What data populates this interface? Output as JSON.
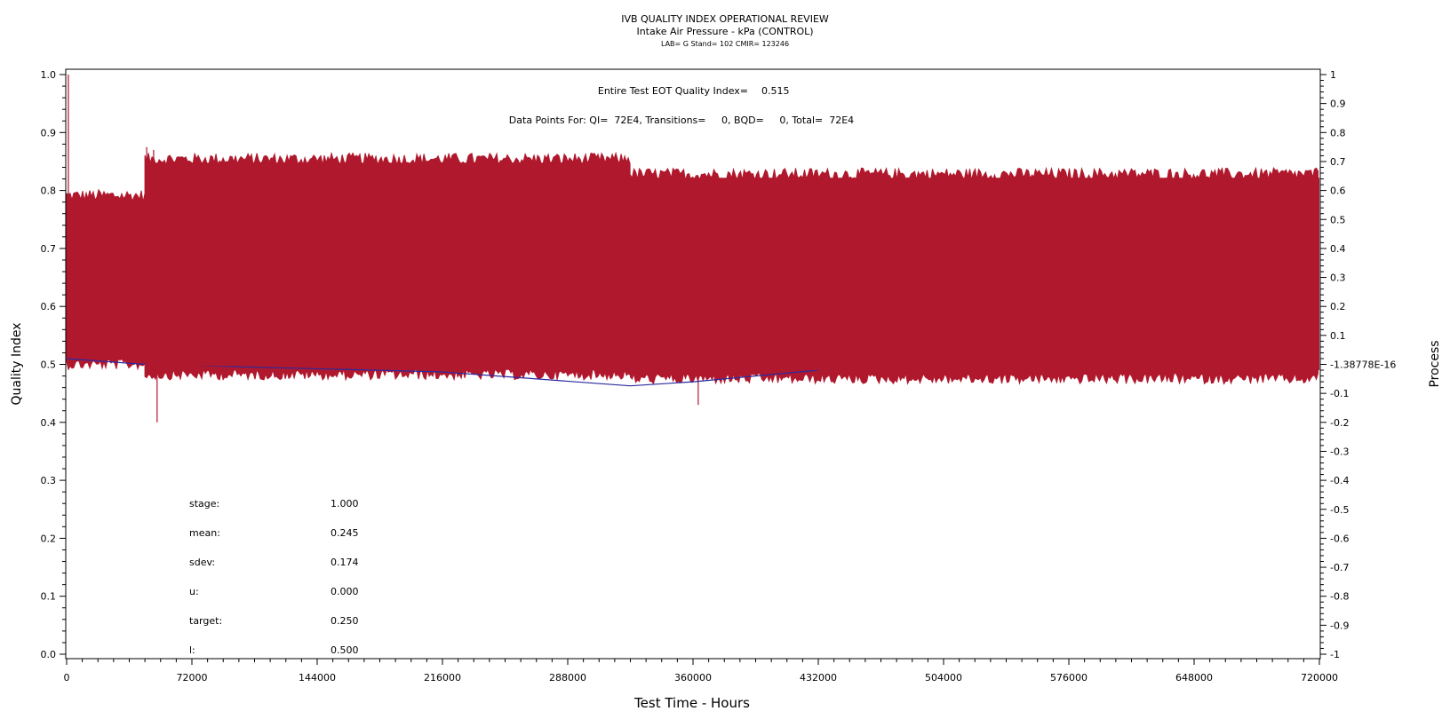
{
  "chart_data": {
    "type": "line",
    "title": "IVB QUALITY INDEX OPERATIONAL REVIEW",
    "subtitle": "Intake Air Pressure - kPa (CONTROL)",
    "subtitle2": "LAB= G Stand= 102 CMIR= 123246",
    "xlabel": "Test Time - Hours",
    "ylabel": "Quality Index",
    "y2label": "Process",
    "xlim": [
      0,
      720000
    ],
    "ylim": [
      0,
      1
    ],
    "y2lim": [
      -1,
      1
    ],
    "x_ticks": [
      "0",
      "72000",
      "144000",
      "216000",
      "288000",
      "360000",
      "432000",
      "504000",
      "576000",
      "648000",
      "720000"
    ],
    "y_ticks": [
      "0.0",
      "0.1",
      "0.2",
      "0.3",
      "0.4",
      "0.5",
      "0.6",
      "0.7",
      "0.8",
      "0.9",
      "1.0"
    ],
    "y2_ticks": [
      "-1",
      "-0.9",
      "-0.8",
      "-0.7",
      "-0.6",
      "-0.5",
      "-0.4",
      "-0.3",
      "-0.2",
      "-0.1",
      "-1.38778E-16",
      "0.1",
      "0.2",
      "0.3",
      "0.4",
      "0.5",
      "0.6",
      "0.7",
      "0.8",
      "0.9",
      "1"
    ],
    "annotations": {
      "eot_label": "Entire Test EOT Quality Index=",
      "eot_value": "0.515",
      "data_points": "Data Points For: QI=  72E4, Transitions=     0, BQD=     0, Total=  72E4"
    },
    "stats": [
      {
        "label": "stage:",
        "value": "1.000"
      },
      {
        "label": "mean:",
        "value": "0.245"
      },
      {
        "label": "sdev:",
        "value": "0.174"
      },
      {
        "label": "u:",
        "value": "0.000"
      },
      {
        "label": "target:",
        "value": "0.250"
      },
      {
        "label": "l:",
        "value": "0.500"
      }
    ],
    "series": [
      {
        "color": "#b0182d",
        "band_segments": [
          {
            "x0": 0,
            "x1": 45000,
            "low": 0.505,
            "high": 0.785
          },
          {
            "x0": 45000,
            "x1": 324000,
            "low": 0.487,
            "high": 0.848
          },
          {
            "x0": 324000,
            "x1": 720000,
            "low": 0.48,
            "high": 0.822
          }
        ],
        "spikes": [
          {
            "x": 1000,
            "y0": 0.5,
            "y1": 1.0
          },
          {
            "x": 52000,
            "y0": 0.4,
            "y1": 0.5
          },
          {
            "x": 46000,
            "y0": 0.8,
            "y1": 0.875
          },
          {
            "x": 50000,
            "y0": 0.8,
            "y1": 0.87
          },
          {
            "x": 363000,
            "y0": 0.43,
            "y1": 0.48
          }
        ]
      },
      {
        "color": "#2a2aa0",
        "x": [
          0,
          45000,
          216000,
          324000,
          360000,
          432000
        ],
        "y": [
          0.51,
          0.5,
          0.487,
          0.463,
          0.47,
          0.49
        ]
      }
    ],
    "grid": false,
    "legend": "none"
  }
}
